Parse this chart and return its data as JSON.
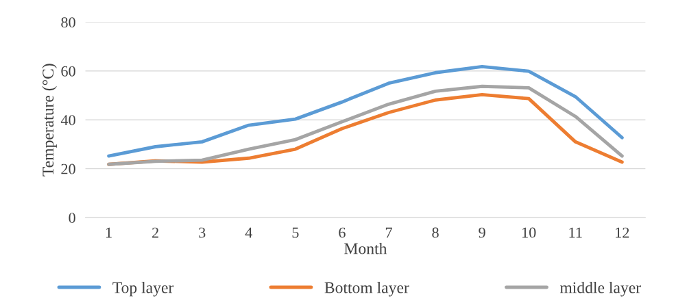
{
  "chart_data": {
    "type": "line",
    "xlabel": "Month",
    "ylabel": "Temperature (°C)",
    "categories": [
      "1",
      "2",
      "3",
      "4",
      "5",
      "6",
      "7",
      "8",
      "9",
      "10",
      "11",
      "12"
    ],
    "series": [
      {
        "name": "Top layer",
        "color": "#5b9bd5",
        "values": [
          25.2,
          29,
          31,
          37.8,
          40.3,
          47.3,
          55,
          59.3,
          61.8,
          59.9,
          49.5,
          32.7
        ]
      },
      {
        "name": "Bottom layer",
        "color": "#ed7d31",
        "values": [
          21.8,
          23.2,
          22.7,
          24.3,
          28,
          36.4,
          43,
          48.1,
          50.3,
          48.7,
          31,
          22.7
        ]
      },
      {
        "name": "middle layer",
        "color": "#a5a5a5",
        "values": [
          21.8,
          23,
          23.5,
          28,
          31.9,
          39.2,
          46.4,
          51.7,
          53.7,
          53.1,
          41.4,
          25.2
        ]
      }
    ],
    "ylim": [
      0,
      80
    ],
    "yticks": [
      0,
      20,
      40,
      60,
      80
    ],
    "grid": "y",
    "legend": "bottom",
    "marker": "none",
    "line_style": "solid"
  }
}
